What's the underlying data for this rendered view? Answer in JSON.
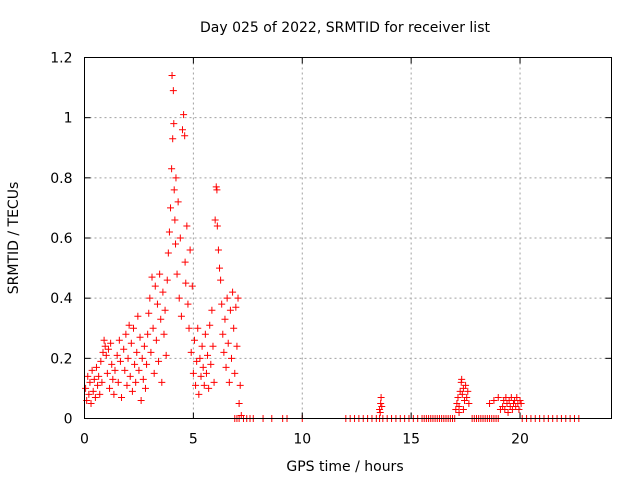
{
  "chart_data": {
    "type": "scatter",
    "title": "Day 025 of 2022, SRMTID for receiver list",
    "xlabel": "GPS time / hours",
    "ylabel": "SRMTID / TECUs",
    "xlim": [
      0,
      24.2
    ],
    "ylim": [
      0,
      1.2
    ],
    "x_ticks": [
      0,
      5,
      10,
      15,
      20
    ],
    "x_tick_labels": [
      "0",
      "5",
      "10",
      "15",
      "20"
    ],
    "y_ticks": [
      0,
      0.2,
      0.4,
      0.6,
      0.8,
      1,
      1.2
    ],
    "y_tick_labels": [
      "0",
      "0.2",
      "0.4",
      "0.6",
      "0.8",
      "1",
      "1.2"
    ],
    "grid": true,
    "legend": "none",
    "marker": "+",
    "series": [
      {
        "color": "#ff0000",
        "points": [
          [
            0.05,
            0.1
          ],
          [
            0.1,
            0.06
          ],
          [
            0.15,
            0.14
          ],
          [
            0.2,
            0.08
          ],
          [
            0.25,
            0.12
          ],
          [
            0.3,
            0.05
          ],
          [
            0.35,
            0.16
          ],
          [
            0.4,
            0.09
          ],
          [
            0.45,
            0.13
          ],
          [
            0.5,
            0.07
          ],
          [
            0.55,
            0.17
          ],
          [
            0.6,
            0.11
          ],
          [
            0.65,
            0.14
          ],
          [
            0.7,
            0.08
          ],
          [
            0.75,
            0.19
          ],
          [
            0.8,
            0.12
          ],
          [
            0.85,
            0.22
          ],
          [
            0.9,
            0.26
          ],
          [
            0.95,
            0.24
          ],
          [
            1.0,
            0.21
          ],
          [
            1.05,
            0.15
          ],
          [
            1.1,
            0.23
          ],
          [
            1.15,
            0.1
          ],
          [
            1.2,
            0.25
          ],
          [
            1.25,
            0.18
          ],
          [
            1.3,
            0.13
          ],
          [
            1.35,
            0.08
          ],
          [
            1.4,
            0.16
          ],
          [
            1.5,
            0.21
          ],
          [
            1.55,
            0.12
          ],
          [
            1.6,
            0.26
          ],
          [
            1.65,
            0.19
          ],
          [
            1.7,
            0.07
          ],
          [
            1.8,
            0.23
          ],
          [
            1.85,
            0.16
          ],
          [
            1.9,
            0.28
          ],
          [
            1.95,
            0.11
          ],
          [
            2.0,
            0.2
          ],
          [
            2.05,
            0.31
          ],
          [
            2.1,
            0.14
          ],
          [
            2.15,
            0.25
          ],
          [
            2.2,
            0.09
          ],
          [
            2.25,
            0.3
          ],
          [
            2.3,
            0.18
          ],
          [
            2.35,
            0.12
          ],
          [
            2.4,
            0.22
          ],
          [
            2.45,
            0.34
          ],
          [
            2.5,
            0.16
          ],
          [
            2.55,
            0.27
          ],
          [
            2.6,
            0.06
          ],
          [
            2.65,
            0.2
          ],
          [
            2.7,
            0.13
          ],
          [
            2.75,
            0.24
          ],
          [
            2.8,
            0.1
          ],
          [
            2.85,
            0.18
          ],
          [
            2.9,
            0.28
          ],
          [
            2.95,
            0.35
          ],
          [
            3.0,
            0.4
          ],
          [
            3.05,
            0.22
          ],
          [
            3.1,
            0.47
          ],
          [
            3.15,
            0.3
          ],
          [
            3.2,
            0.15
          ],
          [
            3.25,
            0.44
          ],
          [
            3.3,
            0.26
          ],
          [
            3.35,
            0.38
          ],
          [
            3.4,
            0.19
          ],
          [
            3.45,
            0.48
          ],
          [
            3.5,
            0.33
          ],
          [
            3.55,
            0.12
          ],
          [
            3.6,
            0.42
          ],
          [
            3.65,
            0.28
          ],
          [
            3.7,
            0.36
          ],
          [
            3.75,
            0.21
          ],
          [
            3.8,
            0.46
          ],
          [
            3.85,
            0.55
          ],
          [
            3.9,
            0.62
          ],
          [
            3.95,
            0.7
          ],
          [
            4.0,
            0.83
          ],
          [
            4.02,
            1.14
          ],
          [
            4.05,
            0.93
          ],
          [
            4.08,
            1.09
          ],
          [
            4.1,
            0.98
          ],
          [
            4.12,
            0.76
          ],
          [
            4.15,
            0.66
          ],
          [
            4.18,
            0.58
          ],
          [
            4.2,
            0.8
          ],
          [
            4.25,
            0.48
          ],
          [
            4.3,
            0.72
          ],
          [
            4.35,
            0.4
          ],
          [
            4.4,
            0.6
          ],
          [
            4.45,
            0.34
          ],
          [
            4.5,
            0.96
          ],
          [
            4.55,
            1.01
          ],
          [
            4.6,
            0.94
          ],
          [
            4.62,
            0.52
          ],
          [
            4.65,
            0.45
          ],
          [
            4.7,
            0.64
          ],
          [
            4.75,
            0.38
          ],
          [
            4.8,
            0.3
          ],
          [
            4.85,
            0.56
          ],
          [
            4.9,
            0.22
          ],
          [
            4.95,
            0.44
          ],
          [
            5.0,
            0.15
          ],
          [
            5.05,
            0.26
          ],
          [
            5.1,
            0.11
          ],
          [
            5.15,
            0.19
          ],
          [
            5.2,
            0.3
          ],
          [
            5.25,
            0.08
          ],
          [
            5.3,
            0.2
          ],
          [
            5.35,
            0.14
          ],
          [
            5.4,
            0.24
          ],
          [
            5.45,
            0.17
          ],
          [
            5.5,
            0.11
          ],
          [
            5.55,
            0.28
          ],
          [
            5.6,
            0.15
          ],
          [
            5.65,
            0.21
          ],
          [
            5.7,
            0.1
          ],
          [
            5.75,
            0.31
          ],
          [
            5.8,
            0.18
          ],
          [
            5.85,
            0.36
          ],
          [
            5.9,
            0.24
          ],
          [
            5.95,
            0.12
          ],
          [
            6.0,
            0.66
          ],
          [
            6.05,
            0.77
          ],
          [
            6.08,
            0.76
          ],
          [
            6.1,
            0.64
          ],
          [
            6.15,
            0.56
          ],
          [
            6.2,
            0.5
          ],
          [
            6.25,
            0.46
          ],
          [
            6.3,
            0.38
          ],
          [
            6.35,
            0.28
          ],
          [
            6.4,
            0.22
          ],
          [
            6.45,
            0.33
          ],
          [
            6.5,
            0.17
          ],
          [
            6.55,
            0.4
          ],
          [
            6.6,
            0.25
          ],
          [
            6.65,
            0.12
          ],
          [
            6.7,
            0.36
          ],
          [
            6.75,
            0.2
          ],
          [
            6.8,
            0.42
          ],
          [
            6.85,
            0.3
          ],
          [
            6.9,
            0.15
          ],
          [
            6.95,
            0.37
          ],
          [
            7.0,
            0.24
          ],
          [
            7.05,
            0.4
          ],
          [
            7.1,
            0.05
          ],
          [
            7.15,
            0.11
          ],
          [
            7.2,
            0.01
          ],
          [
            6.9,
            0.0
          ],
          [
            7.0,
            0.0
          ],
          [
            7.1,
            0.0
          ],
          [
            7.3,
            0.0
          ],
          [
            7.45,
            0.0
          ],
          [
            7.6,
            0.0
          ],
          [
            7.75,
            0.0
          ],
          [
            8.2,
            0.0
          ],
          [
            8.6,
            0.0
          ],
          [
            9.1,
            0.0
          ],
          [
            9.3,
            0.0
          ],
          [
            10.0,
            0.0
          ],
          [
            12.0,
            0.0
          ],
          [
            12.2,
            0.0
          ],
          [
            12.4,
            0.0
          ],
          [
            12.6,
            0.0
          ],
          [
            12.8,
            0.0
          ],
          [
            13.0,
            0.0
          ],
          [
            13.2,
            0.0
          ],
          [
            13.4,
            0.0
          ],
          [
            13.55,
            0.0
          ],
          [
            13.7,
            0.0
          ],
          [
            13.55,
            0.03
          ],
          [
            13.6,
            0.05
          ],
          [
            13.62,
            0.07
          ],
          [
            13.58,
            0.02
          ],
          [
            13.65,
            0.04
          ],
          [
            13.9,
            0.0
          ],
          [
            14.1,
            0.0
          ],
          [
            14.3,
            0.0
          ],
          [
            14.5,
            0.0
          ],
          [
            14.7,
            0.0
          ],
          [
            14.9,
            0.0
          ],
          [
            15.1,
            0.0
          ],
          [
            15.3,
            0.0
          ],
          [
            15.5,
            0.0
          ],
          [
            15.6,
            0.0
          ],
          [
            15.7,
            0.0
          ],
          [
            15.8,
            0.0
          ],
          [
            15.9,
            0.0
          ],
          [
            16.0,
            0.0
          ],
          [
            16.1,
            0.0
          ],
          [
            16.2,
            0.0
          ],
          [
            16.3,
            0.0
          ],
          [
            16.4,
            0.0
          ],
          [
            16.5,
            0.0
          ],
          [
            16.6,
            0.0
          ],
          [
            16.7,
            0.0
          ],
          [
            16.8,
            0.0
          ],
          [
            16.9,
            0.0
          ],
          [
            17.0,
            0.0
          ],
          [
            17.05,
            0.03
          ],
          [
            17.1,
            0.05
          ],
          [
            17.15,
            0.07
          ],
          [
            17.2,
            0.04
          ],
          [
            17.25,
            0.09
          ],
          [
            17.3,
            0.12
          ],
          [
            17.32,
            0.13
          ],
          [
            17.35,
            0.08
          ],
          [
            17.4,
            0.1
          ],
          [
            17.45,
            0.06
          ],
          [
            17.5,
            0.11
          ],
          [
            17.55,
            0.07
          ],
          [
            17.6,
            0.09
          ],
          [
            17.65,
            0.05
          ],
          [
            17.2,
            0.02
          ],
          [
            17.4,
            0.03
          ],
          [
            17.8,
            0.0
          ],
          [
            17.9,
            0.0
          ],
          [
            18.0,
            0.0
          ],
          [
            18.1,
            0.0
          ],
          [
            18.2,
            0.0
          ],
          [
            18.3,
            0.0
          ],
          [
            18.4,
            0.0
          ],
          [
            18.5,
            0.0
          ],
          [
            18.6,
            0.0
          ],
          [
            18.7,
            0.0
          ],
          [
            18.8,
            0.0
          ],
          [
            18.9,
            0.0
          ],
          [
            19.0,
            0.0
          ],
          [
            18.6,
            0.05
          ],
          [
            18.8,
            0.06
          ],
          [
            19.0,
            0.07
          ],
          [
            19.1,
            0.03
          ],
          [
            19.2,
            0.04
          ],
          [
            19.25,
            0.06
          ],
          [
            19.3,
            0.03
          ],
          [
            19.35,
            0.07
          ],
          [
            19.4,
            0.05
          ],
          [
            19.45,
            0.02
          ],
          [
            19.5,
            0.06
          ],
          [
            19.55,
            0.04
          ],
          [
            19.6,
            0.07
          ],
          [
            19.65,
            0.03
          ],
          [
            19.7,
            0.05
          ],
          [
            19.75,
            0.06
          ],
          [
            19.8,
            0.04
          ],
          [
            19.85,
            0.07
          ],
          [
            19.9,
            0.05
          ],
          [
            19.95,
            0.03
          ],
          [
            20.0,
            0.06
          ],
          [
            20.05,
            0.05
          ],
          [
            20.1,
            0.0
          ],
          [
            20.3,
            0.0
          ],
          [
            20.5,
            0.0
          ],
          [
            20.7,
            0.0
          ],
          [
            20.9,
            0.0
          ],
          [
            21.1,
            0.0
          ],
          [
            21.3,
            0.0
          ],
          [
            21.5,
            0.0
          ],
          [
            21.7,
            0.0
          ],
          [
            21.9,
            0.0
          ],
          [
            22.1,
            0.0
          ],
          [
            22.3,
            0.0
          ],
          [
            22.5,
            0.0
          ],
          [
            22.7,
            0.0
          ]
        ]
      }
    ]
  }
}
